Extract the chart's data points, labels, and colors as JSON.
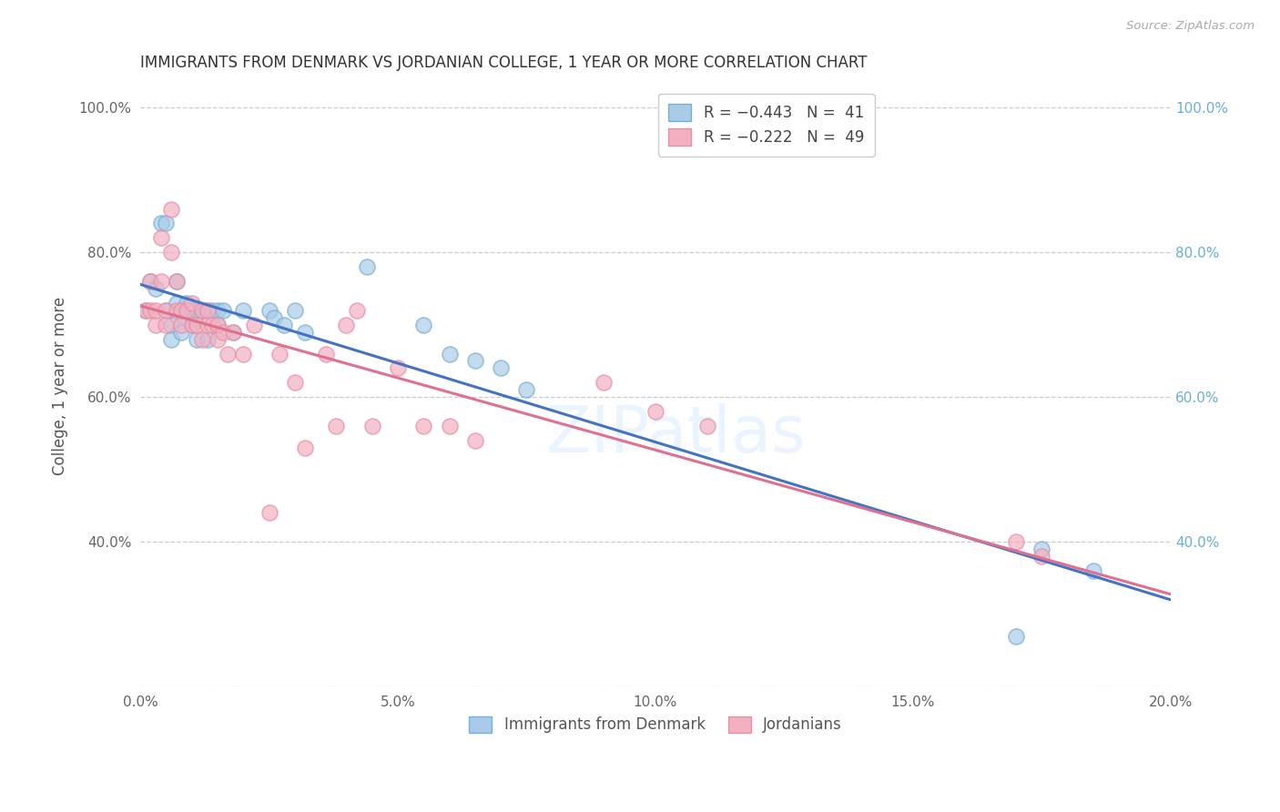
{
  "title": "IMMIGRANTS FROM DENMARK VS JORDANIAN COLLEGE, 1 YEAR OR MORE CORRELATION CHART",
  "source_text": "Source: ZipAtlas.com",
  "ylabel": "College, 1 year or more",
  "xlim": [
    0.0,
    0.2
  ],
  "ylim": [
    0.2,
    1.03
  ],
  "blue_color": "#a8cce8",
  "pink_color": "#f2b0c0",
  "blue_line_color": "#4472c4",
  "pink_line_color": "#e07090",
  "blue_scatter_edge": "#7aafd4",
  "pink_scatter_edge": "#e890a8",
  "denmark_x": [
    0.001,
    0.002,
    0.003,
    0.004,
    0.005,
    0.005,
    0.006,
    0.006,
    0.007,
    0.007,
    0.008,
    0.008,
    0.009,
    0.009,
    0.01,
    0.01,
    0.011,
    0.011,
    0.012,
    0.013,
    0.013,
    0.014,
    0.015,
    0.015,
    0.016,
    0.018,
    0.02,
    0.025,
    0.026,
    0.028,
    0.03,
    0.032,
    0.044,
    0.055,
    0.06,
    0.065,
    0.07,
    0.075,
    0.17,
    0.175,
    0.185
  ],
  "denmark_y": [
    0.72,
    0.76,
    0.75,
    0.84,
    0.84,
    0.72,
    0.7,
    0.68,
    0.76,
    0.73,
    0.69,
    0.72,
    0.71,
    0.73,
    0.72,
    0.7,
    0.72,
    0.68,
    0.72,
    0.72,
    0.68,
    0.72,
    0.72,
    0.7,
    0.72,
    0.69,
    0.72,
    0.72,
    0.71,
    0.7,
    0.72,
    0.69,
    0.78,
    0.7,
    0.66,
    0.65,
    0.64,
    0.61,
    0.27,
    0.39,
    0.36
  ],
  "jordan_x": [
    0.001,
    0.002,
    0.002,
    0.003,
    0.003,
    0.004,
    0.004,
    0.005,
    0.005,
    0.006,
    0.006,
    0.007,
    0.007,
    0.008,
    0.008,
    0.009,
    0.01,
    0.01,
    0.011,
    0.012,
    0.012,
    0.013,
    0.013,
    0.014,
    0.015,
    0.015,
    0.016,
    0.017,
    0.018,
    0.02,
    0.022,
    0.025,
    0.027,
    0.03,
    0.032,
    0.036,
    0.038,
    0.04,
    0.042,
    0.045,
    0.05,
    0.055,
    0.06,
    0.065,
    0.09,
    0.1,
    0.11,
    0.17,
    0.175
  ],
  "jordan_y": [
    0.72,
    0.76,
    0.72,
    0.7,
    0.72,
    0.82,
    0.76,
    0.72,
    0.7,
    0.8,
    0.86,
    0.72,
    0.76,
    0.72,
    0.7,
    0.72,
    0.73,
    0.7,
    0.7,
    0.72,
    0.68,
    0.72,
    0.7,
    0.7,
    0.7,
    0.68,
    0.69,
    0.66,
    0.69,
    0.66,
    0.7,
    0.44,
    0.66,
    0.62,
    0.53,
    0.66,
    0.56,
    0.7,
    0.72,
    0.56,
    0.64,
    0.56,
    0.56,
    0.54,
    0.62,
    0.58,
    0.56,
    0.4,
    0.38
  ]
}
